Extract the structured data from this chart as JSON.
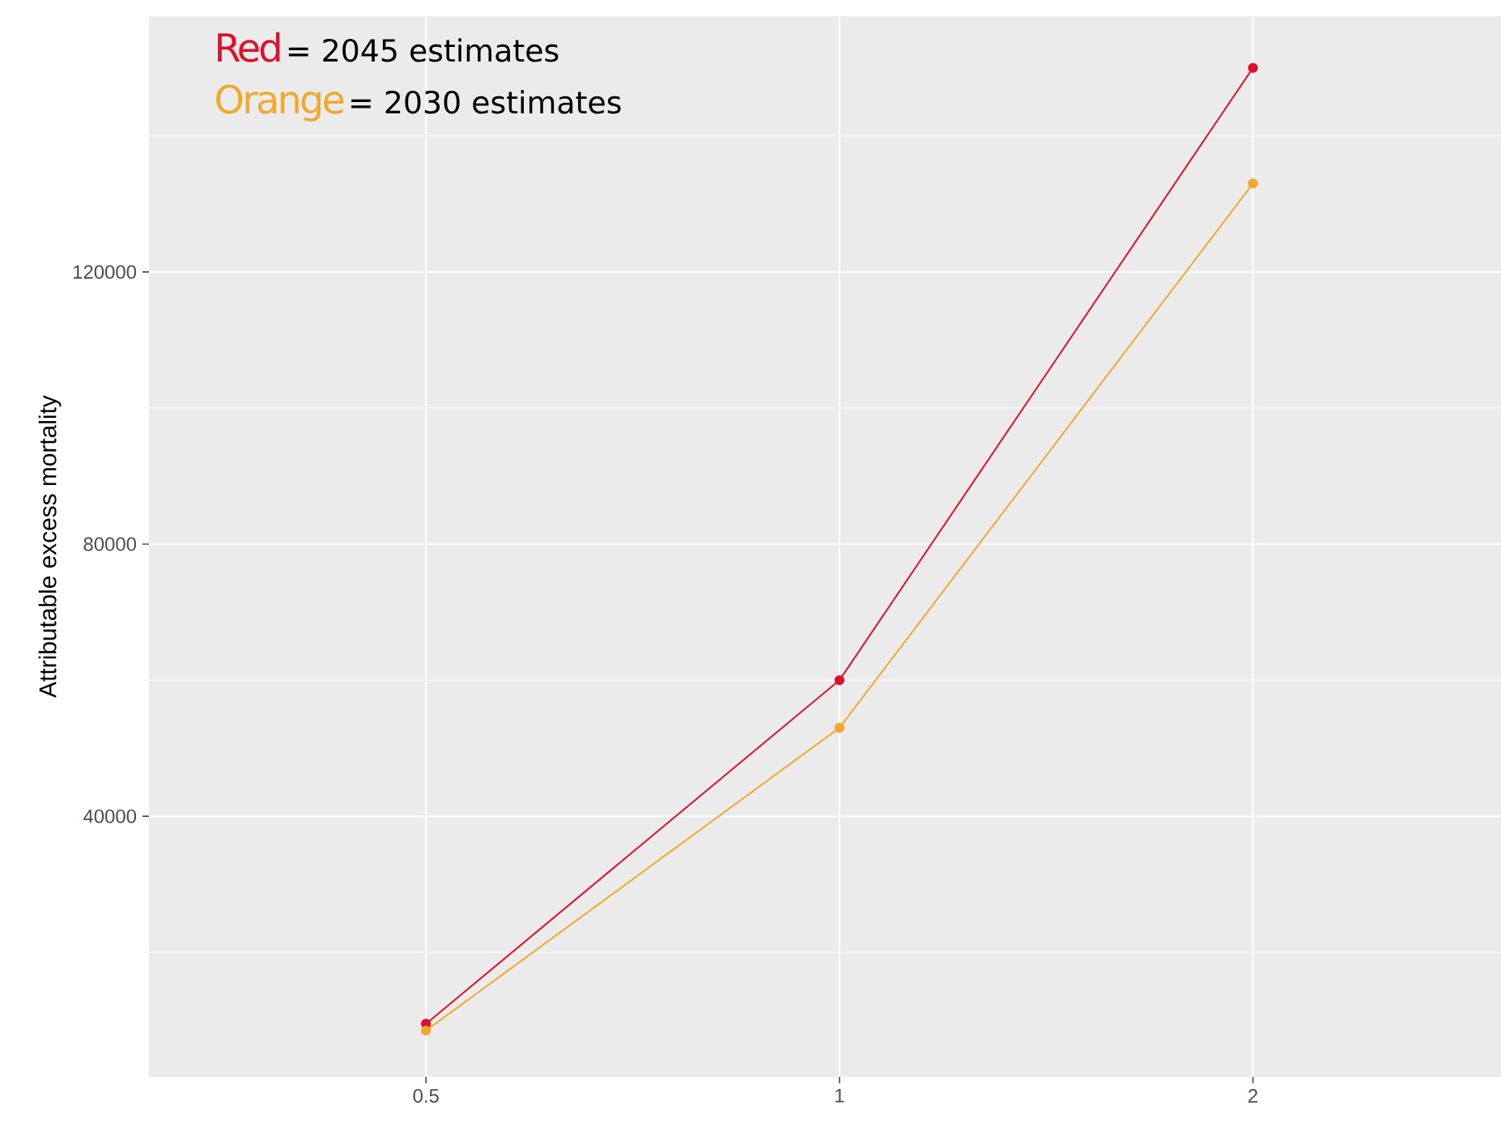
{
  "chart_data": {
    "type": "line",
    "ylabel": "Attributable excess mortality",
    "categories": [
      "0.5",
      "1",
      "2"
    ],
    "series": [
      {
        "color": "#e0102a",
        "values": [
          9500,
          60000,
          150000
        ]
      },
      {
        "color": "#f0a92c",
        "values": [
          8500,
          53000,
          133000
        ]
      }
    ],
    "ylim": [
      1700,
      157600
    ],
    "yticks": [
      40000,
      80000,
      120000
    ],
    "grid": true,
    "marker": "circle",
    "line_style": "solid",
    "annotations": [
      "Red",
      "= 2045 estimates",
      "Orange",
      "= 2030 estimates"
    ]
  }
}
